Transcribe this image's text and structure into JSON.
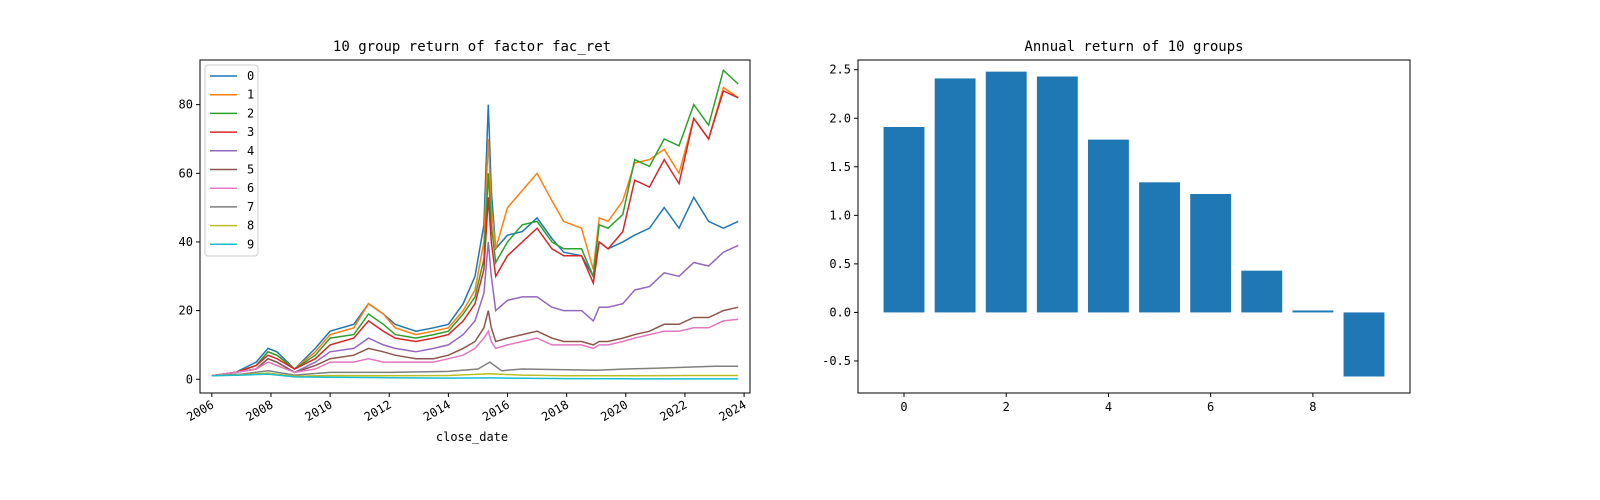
{
  "colors": [
    "#1f77b4",
    "#ff7f0e",
    "#2ca02c",
    "#d62728",
    "#9467bd",
    "#8c564b",
    "#e377c2",
    "#7f7f7f",
    "#bcbd22",
    "#17becf"
  ],
  "chart_data": [
    {
      "type": "line",
      "title": "10 group return of factor fac_ret",
      "xlabel": "close_date",
      "ylabel": "",
      "x_ticks": [
        "2006",
        "2008",
        "2010",
        "2012",
        "2014",
        "2016",
        "2018",
        "2020",
        "2022",
        "2024"
      ],
      "y_ticks": [
        "0",
        "20",
        "40",
        "60",
        "80"
      ],
      "xlim": [
        2005.6,
        2024.2
      ],
      "ylim": [
        -4,
        93
      ],
      "legend_position": "top-left",
      "grid": false,
      "series": [
        {
          "name": "0",
          "x": [
            2006.0,
            2006.8,
            2007.5,
            2007.9,
            2008.2,
            2008.8,
            2009.5,
            2010.0,
            2010.8,
            2011.3,
            2011.8,
            2012.2,
            2012.9,
            2013.5,
            2014.0,
            2014.5,
            2014.9,
            2015.2,
            2015.35,
            2015.45,
            2015.6,
            2016.0,
            2016.5,
            2017.0,
            2017.5,
            2017.9,
            2018.5,
            2018.9,
            2019.1,
            2019.4,
            2019.9,
            2020.3,
            2020.8,
            2021.3,
            2021.8,
            2022.3,
            2022.8,
            2023.3,
            2023.8
          ],
          "y": [
            1,
            2,
            5,
            9,
            8,
            3,
            9,
            14,
            16,
            22,
            19,
            16,
            14,
            15,
            16,
            22,
            30,
            45,
            80,
            55,
            38,
            42,
            43,
            47,
            41,
            37,
            36,
            30,
            40,
            38,
            40,
            42,
            44,
            50,
            44,
            53,
            46,
            44,
            46
          ]
        },
        {
          "name": "1",
          "x": [
            2006.0,
            2006.8,
            2007.5,
            2007.9,
            2008.2,
            2008.8,
            2009.5,
            2010.0,
            2010.8,
            2011.3,
            2011.8,
            2012.2,
            2012.9,
            2013.5,
            2014.0,
            2014.5,
            2014.9,
            2015.2,
            2015.35,
            2015.45,
            2015.6,
            2016.0,
            2016.5,
            2017.0,
            2017.5,
            2017.9,
            2018.5,
            2018.9,
            2019.1,
            2019.4,
            2019.9,
            2020.3,
            2020.8,
            2021.3,
            2021.8,
            2022.3,
            2022.8,
            2023.3,
            2023.8
          ],
          "y": [
            1,
            2,
            4,
            8,
            7,
            3,
            8,
            13,
            15,
            22,
            19,
            15,
            13,
            14,
            15,
            20,
            26,
            40,
            70,
            50,
            38,
            50,
            55,
            60,
            52,
            46,
            44,
            32,
            47,
            46,
            52,
            63,
            64,
            67,
            60,
            76,
            70,
            85,
            82
          ]
        },
        {
          "name": "2",
          "x": [
            2006.0,
            2006.8,
            2007.5,
            2007.9,
            2008.2,
            2008.8,
            2009.5,
            2010.0,
            2010.8,
            2011.3,
            2011.8,
            2012.2,
            2012.9,
            2013.5,
            2014.0,
            2014.5,
            2014.9,
            2015.2,
            2015.35,
            2015.45,
            2015.6,
            2016.0,
            2016.5,
            2017.0,
            2017.5,
            2017.9,
            2018.5,
            2018.9,
            2019.1,
            2019.4,
            2019.9,
            2020.3,
            2020.8,
            2021.3,
            2021.8,
            2022.3,
            2022.8,
            2023.3,
            2023.8
          ],
          "y": [
            1,
            2,
            4,
            8,
            7,
            3,
            7,
            12,
            13,
            19,
            16,
            13,
            12,
            13,
            14,
            19,
            24,
            35,
            60,
            45,
            34,
            40,
            45,
            46,
            40,
            38,
            38,
            30,
            45,
            44,
            48,
            64,
            62,
            70,
            68,
            80,
            74,
            90,
            86
          ]
        },
        {
          "name": "3",
          "x": [
            2006.0,
            2006.8,
            2007.5,
            2007.9,
            2008.2,
            2008.8,
            2009.5,
            2010.0,
            2010.8,
            2011.3,
            2011.8,
            2012.2,
            2012.9,
            2013.5,
            2014.0,
            2014.5,
            2014.9,
            2015.2,
            2015.35,
            2015.45,
            2015.6,
            2016.0,
            2016.5,
            2017.0,
            2017.5,
            2017.9,
            2018.5,
            2018.9,
            2019.1,
            2019.4,
            2019.9,
            2020.3,
            2020.8,
            2021.3,
            2021.8,
            2022.3,
            2022.8,
            2023.3,
            2023.8
          ],
          "y": [
            1,
            2,
            4,
            7,
            6,
            3,
            6,
            10,
            12,
            17,
            14,
            12,
            11,
            12,
            13,
            17,
            22,
            32,
            53,
            40,
            30,
            36,
            40,
            44,
            38,
            36,
            36,
            28,
            40,
            38,
            43,
            58,
            56,
            64,
            57,
            76,
            70,
            84,
            82
          ]
        },
        {
          "name": "4",
          "x": [
            2006.0,
            2006.8,
            2007.5,
            2007.9,
            2008.2,
            2008.8,
            2009.5,
            2010.0,
            2010.8,
            2011.3,
            2011.8,
            2012.2,
            2012.9,
            2013.5,
            2014.0,
            2014.5,
            2014.9,
            2015.2,
            2015.35,
            2015.45,
            2015.6,
            2016.0,
            2016.5,
            2017.0,
            2017.5,
            2017.9,
            2018.5,
            2018.9,
            2019.1,
            2019.4,
            2019.9,
            2020.3,
            2020.8,
            2021.3,
            2021.8,
            2022.3,
            2022.8,
            2023.3,
            2023.8
          ],
          "y": [
            1,
            2,
            3,
            6,
            5,
            2,
            5,
            8,
            9,
            12,
            10,
            9,
            8,
            9,
            10,
            13,
            17,
            25,
            40,
            30,
            20,
            23,
            24,
            24,
            21,
            20,
            20,
            17,
            21,
            21,
            22,
            26,
            27,
            31,
            30,
            34,
            33,
            37,
            39
          ]
        },
        {
          "name": "5",
          "x": [
            2006.0,
            2006.8,
            2007.5,
            2007.9,
            2008.2,
            2008.8,
            2009.5,
            2010.0,
            2010.8,
            2011.3,
            2011.8,
            2012.2,
            2012.9,
            2013.5,
            2014.0,
            2014.5,
            2014.9,
            2015.2,
            2015.35,
            2015.45,
            2015.6,
            2016.0,
            2016.5,
            2017.0,
            2017.5,
            2017.9,
            2018.5,
            2018.9,
            2019.1,
            2019.4,
            2019.9,
            2020.3,
            2020.8,
            2021.3,
            2021.8,
            2022.3,
            2022.8,
            2023.3,
            2023.8
          ],
          "y": [
            1,
            2,
            3,
            6,
            5,
            2,
            4,
            6,
            7,
            9,
            8,
            7,
            6,
            6,
            7,
            9,
            11,
            15,
            20,
            15,
            11,
            12,
            13,
            14,
            12,
            11,
            11,
            10,
            11,
            11,
            12,
            13,
            14,
            16,
            16,
            18,
            18,
            20,
            21
          ]
        },
        {
          "name": "6",
          "x": [
            2006.0,
            2006.8,
            2007.5,
            2007.9,
            2008.2,
            2008.8,
            2009.5,
            2010.0,
            2010.8,
            2011.3,
            2011.8,
            2012.2,
            2012.9,
            2013.5,
            2014.0,
            2014.5,
            2014.9,
            2015.2,
            2015.35,
            2015.45,
            2015.6,
            2016.0,
            2016.5,
            2017.0,
            2017.5,
            2017.9,
            2018.5,
            2018.9,
            2019.1,
            2019.4,
            2019.9,
            2020.3,
            2020.8,
            2021.3,
            2021.8,
            2022.3,
            2022.8,
            2023.3,
            2023.8
          ],
          "y": [
            1,
            2,
            3,
            5,
            4,
            2,
            3,
            5,
            5,
            6,
            5,
            5,
            5,
            5,
            6,
            7,
            9,
            12,
            14,
            11,
            9,
            10,
            11,
            12,
            10,
            10,
            10,
            9,
            10,
            10,
            11,
            12,
            13,
            14,
            14,
            15,
            15,
            17,
            17.5
          ]
        },
        {
          "name": "7",
          "x": [
            2006.0,
            2007.0,
            2007.9,
            2008.8,
            2010.0,
            2012.0,
            2014.0,
            2015.0,
            2015.4,
            2015.8,
            2016.5,
            2018.0,
            2019.0,
            2020.0,
            2021.0,
            2022.0,
            2023.0,
            2023.8
          ],
          "y": [
            1,
            1.5,
            2.5,
            1.2,
            2,
            2,
            2.3,
            3,
            5,
            2.5,
            3,
            2.8,
            2.6,
            3,
            3.2,
            3.5,
            3.8,
            3.8
          ]
        },
        {
          "name": "8",
          "x": [
            2006.0,
            2007.0,
            2007.9,
            2008.8,
            2010.0,
            2012.0,
            2014.0,
            2015.4,
            2016.5,
            2018.0,
            2020.0,
            2022.0,
            2023.8
          ],
          "y": [
            1,
            1.3,
            1.8,
            0.9,
            1.1,
            1.0,
            1.1,
            1.6,
            1.2,
            1.0,
            1.0,
            1.1,
            1.1
          ]
        },
        {
          "name": "9",
          "x": [
            2006.0,
            2007.0,
            2007.9,
            2008.8,
            2010.0,
            2012.0,
            2014.0,
            2015.4,
            2016.5,
            2018.0,
            2020.0,
            2022.0,
            2023.8
          ],
          "y": [
            1,
            1.2,
            1.5,
            0.7,
            0.6,
            0.45,
            0.35,
            0.4,
            0.3,
            0.2,
            0.15,
            0.12,
            0.1
          ]
        }
      ]
    },
    {
      "type": "bar",
      "title": "Annual return of 10 groups",
      "xlabel": "",
      "ylabel": "",
      "categories": [
        0,
        1,
        2,
        3,
        4,
        5,
        6,
        7,
        8,
        9
      ],
      "values": [
        1.91,
        2.41,
        2.48,
        2.43,
        1.78,
        1.34,
        1.22,
        0.43,
        0.02,
        -0.66
      ],
      "color": "#1f77b4",
      "x_ticks": [
        "0",
        "2",
        "4",
        "6",
        "8"
      ],
      "y_ticks": [
        "-0.5",
        "0.0",
        "0.5",
        "1.0",
        "1.5",
        "2.0",
        "2.5"
      ],
      "xlim": [
        -0.9,
        9.9
      ],
      "ylim": [
        -0.83,
        2.6
      ],
      "grid": false
    }
  ]
}
